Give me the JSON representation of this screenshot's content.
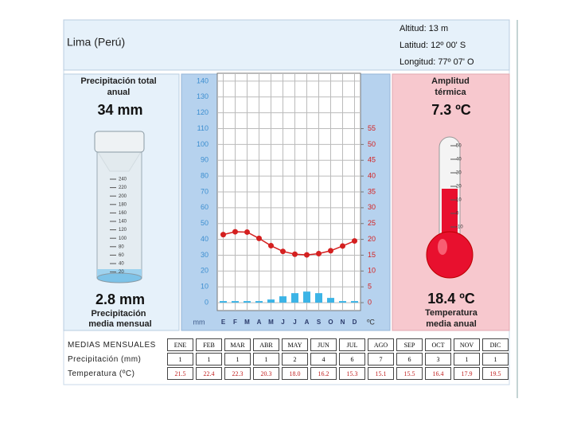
{
  "header": {
    "location": "Lima (Perú)",
    "altitude": "Altitud: 13 m",
    "latitude": "Latitud: 12º 00' S",
    "longitude": "Longitud: 77º 07' O"
  },
  "precipitation_panel": {
    "title": [
      "Precipitación total",
      "anual"
    ],
    "total": "34 mm",
    "mean": "2.8 mm",
    "caption": [
      "Precipitación",
      "media mensual"
    ],
    "gauge_ticks": [
      "240",
      "220",
      "200",
      "180",
      "160",
      "140",
      "120",
      "100",
      "80",
      "60",
      "40",
      "20"
    ]
  },
  "temperature_panel": {
    "title": [
      "Amplitud",
      "térmica"
    ],
    "range": "7.3 ºC",
    "mean": "18.4 ºC",
    "caption": [
      "Temperatura",
      "media anual"
    ],
    "thermometer_ticks": [
      "50",
      "40",
      "30",
      "20",
      "10",
      "0",
      "-10"
    ]
  },
  "chart_data": {
    "type": "climograph",
    "categories": [
      "E",
      "F",
      "M",
      "A",
      "M",
      "J",
      "J",
      "A",
      "S",
      "O",
      "N",
      "D"
    ],
    "series": [
      {
        "type": "bar",
        "color": "#3cb4e6",
        "values": [
          1,
          1,
          1,
          1,
          2,
          4,
          6,
          7,
          6,
          3,
          1,
          1
        ]
      },
      {
        "type": "line",
        "axis": "y2",
        "color": "#d42020",
        "values": [
          21.5,
          22.4,
          22.3,
          20.3,
          18.0,
          16.2,
          15.3,
          15.1,
          15.5,
          16.4,
          17.9,
          19.5
        ]
      }
    ],
    "ylabel": "mm",
    "y2label": "ºC",
    "ylim": [
      -5,
      145
    ],
    "yticks": [
      0,
      10,
      20,
      30,
      40,
      50,
      60,
      70,
      80,
      90,
      100,
      110,
      120,
      130,
      140
    ],
    "ytick_color": "#3c8ed0",
    "y2lim": [
      -2.5,
      72.5
    ],
    "y2ticks": [
      0,
      5,
      10,
      15,
      20,
      25,
      30,
      35,
      40,
      45,
      50,
      55
    ],
    "y2tick_color": "#d42020",
    "grid": true
  },
  "table": {
    "header": "MEDIAS MENSUALES",
    "months": [
      "ENE",
      "FEB",
      "MAR",
      "ABR",
      "MAY",
      "JUN",
      "JUL",
      "AGO",
      "SEP",
      "OCT",
      "NOV",
      "DIC"
    ],
    "rows": [
      {
        "label": "Precipitación (mm)",
        "values": [
          "1",
          "1",
          "1",
          "1",
          "2",
          "4",
          "6",
          "7",
          "6",
          "3",
          "1",
          "1"
        ]
      },
      {
        "label": "Temperatura (ºC)",
        "values": [
          "21.5",
          "22.4",
          "22.3",
          "20.3",
          "18.0",
          "16.2",
          "15.3",
          "15.1",
          "15.5",
          "16.4",
          "17.9",
          "19.5"
        ]
      }
    ]
  }
}
